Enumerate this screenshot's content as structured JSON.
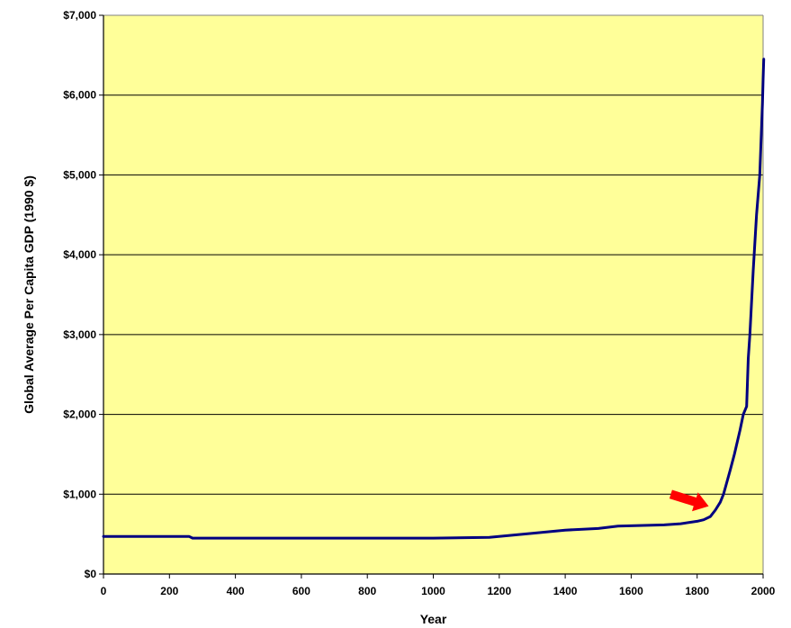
{
  "chart_data": {
    "type": "line",
    "title": "",
    "xlabel": "Year",
    "ylabel": "Global Average Per Capita GDP (1990 $)",
    "xlim": [
      0,
      2000
    ],
    "ylim": [
      0,
      7000
    ],
    "x_ticks": [
      0,
      200,
      400,
      600,
      800,
      1000,
      1200,
      1400,
      1600,
      1800,
      2000
    ],
    "y_ticks": [
      0,
      1000,
      2000,
      3000,
      4000,
      5000,
      6000,
      7000
    ],
    "y_tick_labels": [
      "$0",
      "$1,000",
      "$2,000",
      "$3,000",
      "$4,000",
      "$5,000",
      "$6,000",
      "$7,000"
    ],
    "grid": "horizontal",
    "legend": "none",
    "plot_background": "#FFFF99",
    "series": [
      {
        "color": "#000080",
        "x": [
          0,
          260,
          270,
          1000,
          1170,
          1300,
          1400,
          1500,
          1560,
          1700,
          1750,
          1800,
          1820,
          1840,
          1855,
          1870,
          1880,
          1890,
          1900,
          1913,
          1930,
          1940,
          1950,
          1955,
          1960,
          1970,
          1980,
          1990,
          1998,
          2000,
          2002
        ],
        "y": [
          470,
          470,
          450,
          450,
          460,
          510,
          550,
          570,
          600,
          615,
          630,
          660,
          680,
          720,
          800,
          900,
          1000,
          1150,
          1300,
          1500,
          1800,
          2000,
          2100,
          2700,
          3000,
          3800,
          4500,
          5000,
          5900,
          6200,
          6450
        ]
      }
    ],
    "annotations": [
      {
        "type": "arrow",
        "color": "#FF0000",
        "from": [
          1720,
          1000
        ],
        "to": [
          1835,
          850
        ]
      }
    ]
  }
}
